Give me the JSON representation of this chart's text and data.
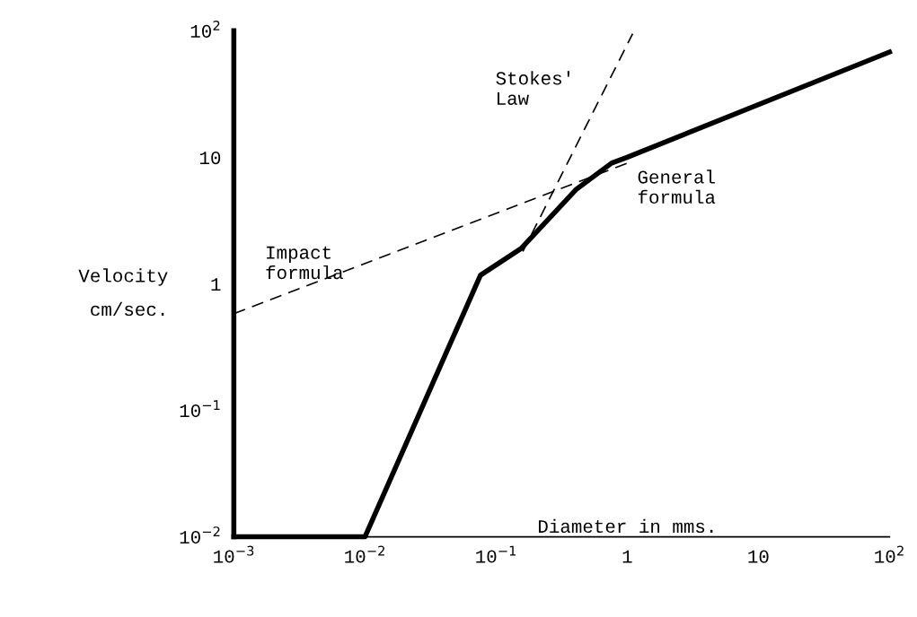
{
  "chart_data": {
    "type": "line",
    "log": "xy",
    "grid": false,
    "legend": false,
    "xlabel": "Diameter in mms.",
    "ylabel": "Velocity\ncm/sec.",
    "xlim": [
      0.001,
      100
    ],
    "ylim": [
      0.01,
      100
    ],
    "xticks": [
      {
        "value": 0.001,
        "label": "10$^{−3}$"
      },
      {
        "value": 0.01,
        "label": "10$^{−2}$"
      },
      {
        "value": 0.1,
        "label": "10$^{−1}$"
      },
      1,
      10,
      {
        "value": 100,
        "label": "10$^{2}$"
      }
    ],
    "yticks": [
      {
        "value": 0.01,
        "label": "10$^{−2}$"
      },
      {
        "value": 0.1,
        "label": "10$^{−1}$"
      },
      1,
      10,
      {
        "value": 100,
        "label": "10$^{2}$"
      }
    ],
    "series": [
      {
        "name": "General\nformula",
        "color": "#000000",
        "line_style": "solid",
        "x": [
          0.001,
          0.01,
          0.076,
          0.155,
          0.41,
          0.76,
          1,
          100
        ],
        "values": [
          0.01,
          0.01,
          1.17,
          1.9,
          5.6,
          9,
          10,
          68
        ]
      },
      {
        "name": "Stokes'\nLaw",
        "color": "#000000",
        "line_style": "dashed",
        "x": [
          0.16,
          1.1
        ],
        "values": [
          1.8,
          95
        ]
      },
      {
        "name": "Impact\nformula",
        "color": "#000000",
        "line_style": "dashed",
        "x": [
          0.001,
          1
        ],
        "values": [
          0.58,
          9
        ]
      }
    ]
  }
}
